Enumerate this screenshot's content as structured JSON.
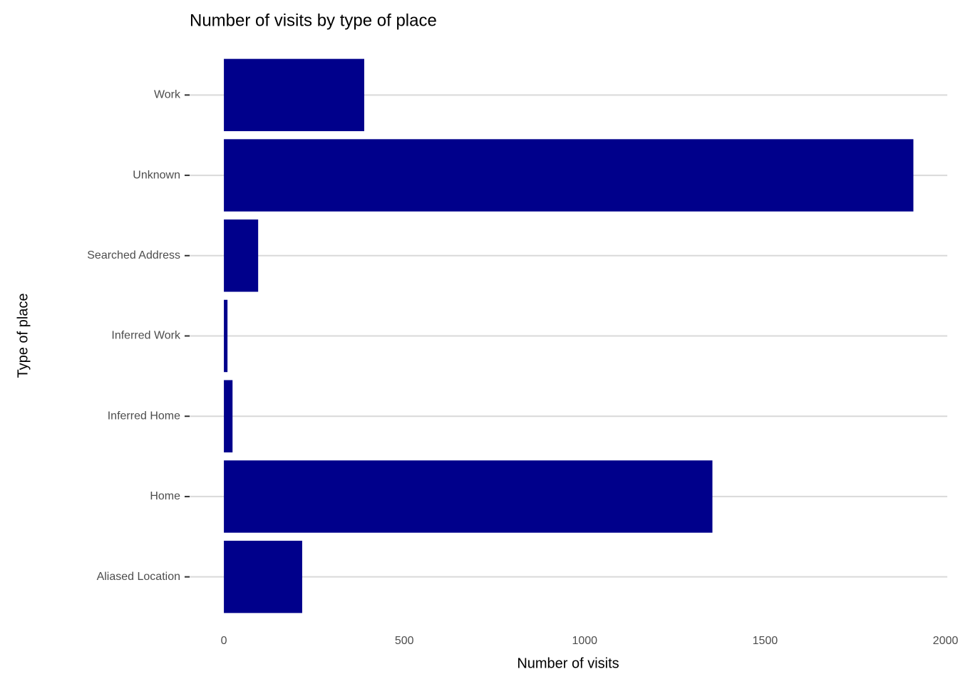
{
  "chart_data": {
    "type": "barh",
    "title": "Number of visits by type of place",
    "x_label": "Number of visits",
    "y_label": "Type of place",
    "categories": [
      "Aliased Location",
      "Home",
      "Inferred Home",
      "Inferred Work",
      "Searched Address",
      "Unknown",
      "Work"
    ],
    "values": [
      217,
      1354,
      24,
      10,
      95,
      1911,
      389
    ],
    "color": "#00008b",
    "xlim": [
      -95,
      2005
    ],
    "xticks": [
      0,
      500,
      1000,
      1500,
      2000
    ],
    "grid": true
  }
}
